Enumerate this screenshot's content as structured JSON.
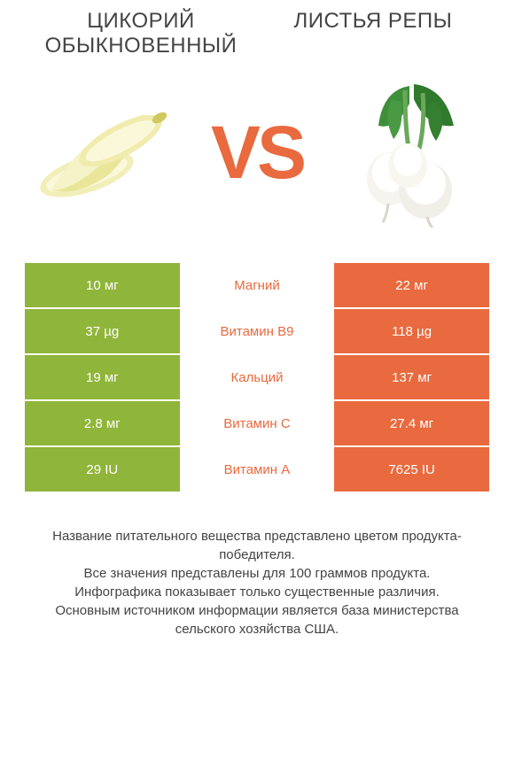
{
  "colors": {
    "left": "#8fb53a",
    "right": "#e86a3e",
    "text": "#444444",
    "bg": "#ffffff"
  },
  "titles": {
    "left": "ЦИКОРИЙ ОБЫКНОВЕННЫЙ",
    "right": "ЛИСТЬЯ РЕПЫ"
  },
  "vs_label": "VS",
  "nutrients": [
    {
      "name": "Магний",
      "left": "10 мг",
      "right": "22 мг",
      "winner": "right"
    },
    {
      "name": "Витамин B9",
      "left": "37 µg",
      "right": "118 µg",
      "winner": "right"
    },
    {
      "name": "Кальций",
      "left": "19 мг",
      "right": "137 мг",
      "winner": "right"
    },
    {
      "name": "Витамин C",
      "left": "2.8 мг",
      "right": "27.4 мг",
      "winner": "right"
    },
    {
      "name": "Витамин A",
      "left": "29 IU",
      "right": "7625 IU",
      "winner": "right"
    }
  ],
  "footer": "Название питательного вещества представлено цветом продукта-победителя.\nВсе значения представлены для 100 граммов продукта.\nИнфографика показывает только существенные различия.\nОсновным источником информации является база министерства сельского хозяйства США."
}
